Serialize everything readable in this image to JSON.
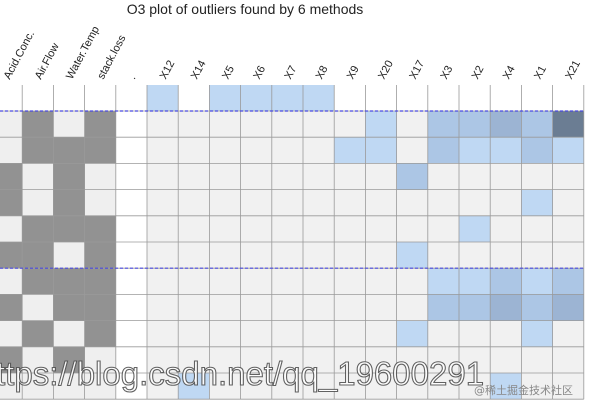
{
  "chart_data": {
    "type": "heatmap",
    "title": "O3 plot of outliers found by 6 methods",
    "variable_columns": [
      "Acid.Conc.",
      "Air.Flow",
      "Water.Temp",
      "stack.loss",
      "."
    ],
    "observation_columns": [
      "X12",
      "X14",
      "X5",
      "X6",
      "X7",
      "X8",
      "X9",
      "X20",
      "X17",
      "X3",
      "X2",
      "X4",
      "X1",
      "X21"
    ],
    "levels": {
      "0": "#f1f1f1",
      "1": "#bfd8f3",
      "2": "#acc6e5",
      "3": "#9cb4d3",
      "4": "#8ea3bf",
      "5": "#6b7d93"
    },
    "variable_colors": {
      "0": "#efefef",
      "1": "#929292",
      "blank": "#ffffff"
    },
    "header_row_levels": [
      1,
      0,
      1,
      1,
      1,
      1,
      0,
      0,
      0,
      0,
      0,
      0,
      0,
      0
    ],
    "rows": [
      {
        "vars": [
          0,
          1,
          0,
          1,
          "blank"
        ],
        "obs": [
          0,
          0,
          0,
          0,
          0,
          0,
          0,
          1,
          0,
          2,
          2,
          3,
          2,
          5
        ]
      },
      {
        "vars": [
          0,
          1,
          1,
          1,
          "blank"
        ],
        "obs": [
          0,
          0,
          0,
          0,
          0,
          0,
          1,
          1,
          0,
          2,
          1,
          1,
          2,
          1
        ]
      },
      {
        "vars": [
          1,
          0,
          1,
          0,
          "blank"
        ],
        "obs": [
          0,
          0,
          0,
          0,
          0,
          0,
          0,
          0,
          2,
          0,
          0,
          0,
          0,
          0
        ]
      },
      {
        "vars": [
          1,
          0,
          1,
          0,
          "blank"
        ],
        "obs": [
          0,
          0,
          0,
          0,
          0,
          0,
          0,
          0,
          0,
          0,
          0,
          0,
          1,
          0
        ]
      },
      {
        "vars": [
          0,
          1,
          1,
          1,
          "blank"
        ],
        "obs": [
          0,
          0,
          0,
          0,
          0,
          0,
          0,
          0,
          0,
          0,
          1,
          0,
          0,
          0
        ]
      },
      {
        "vars": [
          1,
          1,
          0,
          1,
          "blank"
        ],
        "obs": [
          0,
          0,
          0,
          0,
          0,
          0,
          0,
          0,
          1,
          0,
          0,
          0,
          0,
          0
        ]
      },
      {
        "vars": [
          0,
          1,
          1,
          1,
          "blank"
        ],
        "obs": [
          0,
          0,
          0,
          0,
          0,
          0,
          0,
          0,
          0,
          1,
          1,
          2,
          1,
          2
        ]
      },
      {
        "vars": [
          1,
          0,
          1,
          1,
          "blank"
        ],
        "obs": [
          0,
          0,
          0,
          0,
          0,
          0,
          0,
          0,
          0,
          2,
          2,
          3,
          2,
          3
        ]
      },
      {
        "vars": [
          0,
          1,
          0,
          1,
          "blank"
        ],
        "obs": [
          0,
          0,
          0,
          0,
          0,
          0,
          0,
          0,
          1,
          0,
          0,
          0,
          1,
          0
        ]
      },
      {
        "vars": [
          1,
          0,
          1,
          0,
          "blank"
        ],
        "obs": [
          0,
          0,
          0,
          0,
          0,
          0,
          0,
          0,
          0,
          0,
          0,
          0,
          0,
          0
        ]
      },
      {
        "vars": [
          0,
          0,
          0,
          0,
          "blank"
        ],
        "obs": [
          0,
          1,
          0,
          0,
          0,
          0,
          0,
          0,
          0,
          0,
          0,
          1,
          0,
          0
        ]
      }
    ],
    "dashed_separators_after_rows": [
      0,
      6
    ],
    "line_color": "#4a4adf",
    "grid": true
  },
  "watermark": {
    "url_text": "ttps://blog.csdn.net/qq_19600291",
    "badge_text": "@稀土掘金技术社区"
  }
}
